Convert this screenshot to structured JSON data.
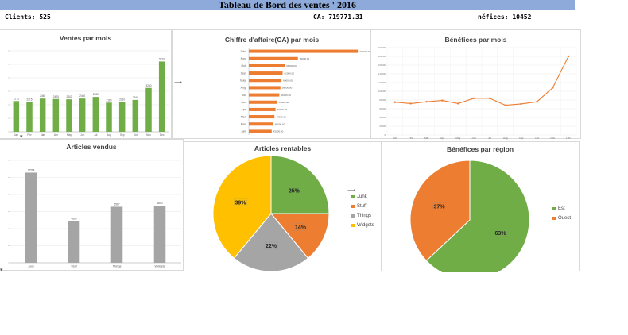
{
  "header": {
    "title": "Tableau de Bord des ventes ' 2016"
  },
  "kpis": {
    "clients": "Clients: 525",
    "ca": "CA: 719771.31",
    "benefices": "néfices: 10452"
  },
  "colors": {
    "green": "#70ad47",
    "orange": "#ed7d31",
    "gray": "#a5a5a5",
    "yellow": "#ffc000",
    "banner": "#8eaadb"
  },
  "chart_data": [
    {
      "id": "ventes",
      "type": "bar",
      "title": "Ventes par mois",
      "categories": [
        "Jan",
        "Fév",
        "Mar",
        "Apr",
        "May",
        "Jun",
        "Jul",
        "Aug",
        "Sep",
        "Oct",
        "Nov",
        "Dec"
      ],
      "values": [
        2275,
        2215,
        2460,
        2425,
        2402,
        2460,
        2580,
        2160,
        2210,
        2360,
        3250,
        5210
      ],
      "ylim": [
        0,
        6000
      ]
    },
    {
      "id": "ca",
      "type": "bar",
      "orientation": "horizontal",
      "title": "Chiffre d'affaire(CA) par mois",
      "categories": [
        "Jan",
        "Fév",
        "Mar",
        "Apr",
        "Jun",
        "Jul",
        "Aug",
        "May",
        "Sep",
        "Oct",
        "Nov",
        "Déc"
      ],
      "values": [
        42000,
        45000,
        47000,
        49000,
        52000,
        56000,
        58000,
        60000,
        62000,
        66000,
        90000,
        200000
      ],
      "labels": [
        "42000.00",
        "45000.00",
        "47000.00",
        "49000.00",
        "52000.00",
        "56000.00",
        "58000.00",
        "60000.00",
        "62000.00",
        "66000.00",
        "90000.00",
        "200000.00"
      ],
      "xlim": [
        0,
        210000
      ]
    },
    {
      "id": "benefices",
      "type": "line",
      "title": "Bénéfices par mois",
      "categories": [
        "Jan",
        "Fév",
        "Mar",
        "Apr",
        "May",
        "Jun",
        "Jul",
        "Aug",
        "Sep",
        "Oct",
        "Nov",
        "Déc"
      ],
      "values": [
        75000,
        72000,
        76000,
        79000,
        72000,
        84000,
        84000,
        68000,
        71000,
        76000,
        108000,
        180000
      ],
      "yticks": [
        "0",
        "20000",
        "40000",
        "60000",
        "80000",
        "100000",
        "120000",
        "140000",
        "160000",
        "180000",
        "200000"
      ],
      "ylim": [
        0,
        200000
      ]
    },
    {
      "id": "articles",
      "type": "bar",
      "title": "Articles  vendus",
      "categories": [
        "Junk",
        "Stuff",
        "Things",
        "Widgets"
      ],
      "values": [
        10564,
        4863,
        6567,
        6690
      ],
      "ylim": [
        0,
        12000
      ]
    },
    {
      "id": "rentables",
      "type": "pie",
      "title": "Articles rentables",
      "slices": [
        {
          "label": "Junk",
          "value": 25,
          "display": "25%",
          "color": "#70ad47"
        },
        {
          "label": "Stuff",
          "value": 14,
          "display": "14%",
          "color": "#ed7d31"
        },
        {
          "label": "Things",
          "value": 22,
          "display": "22%",
          "color": "#a5a5a5"
        },
        {
          "label": "Widgets",
          "value": 39,
          "display": "39%",
          "color": "#ffc000"
        }
      ]
    },
    {
      "id": "region",
      "type": "pie",
      "title": "Bénéfices par région",
      "slices": [
        {
          "label": "Est",
          "value": 63,
          "display": "63%",
          "color": "#70ad47"
        },
        {
          "label": "Ouest",
          "value": 37,
          "display": "37%",
          "color": "#ed7d31"
        }
      ]
    }
  ]
}
